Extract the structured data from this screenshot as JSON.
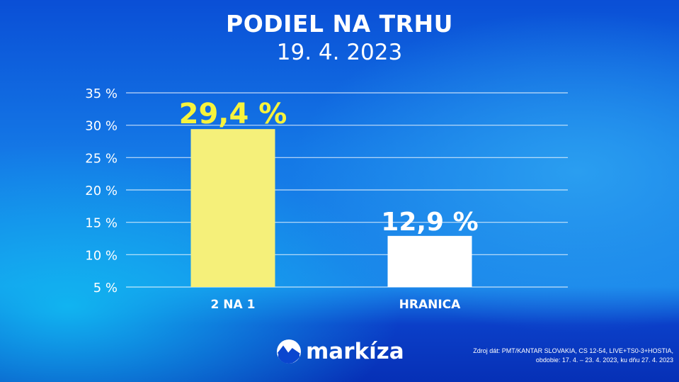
{
  "chart_data": {
    "type": "bar",
    "title": "PODIEL NA TRHU",
    "subtitle": "19. 4. 2023",
    "categories": [
      "2 NA 1",
      "HRANICA"
    ],
    "values": [
      29.4,
      12.9
    ],
    "data_labels": [
      "29,4 %",
      "12,9 %"
    ],
    "bar_colors": [
      "#f5f07a",
      "#ffffff"
    ],
    "label_colors": [
      "#f7f33c",
      "#ffffff"
    ],
    "ylim": [
      5,
      35
    ],
    "yticks": [
      5,
      10,
      15,
      20,
      25,
      30,
      35
    ],
    "ytick_labels": [
      "5 %",
      "10 %",
      "15 %",
      "20 %",
      "25 %",
      "30 %",
      "35 %"
    ],
    "grid": true,
    "xlabel": "",
    "ylabel": ""
  },
  "logo": {
    "text": "markíza"
  },
  "source": {
    "line1": "Zdroj dát: PMT/KANTAR SLOVAKIA, CS 12-54, LIVE+TS0-3+HOSTIA,",
    "line2": "obdobie: 17. 4. – 23. 4. 2023, ku dňu 27. 4. 2023"
  }
}
